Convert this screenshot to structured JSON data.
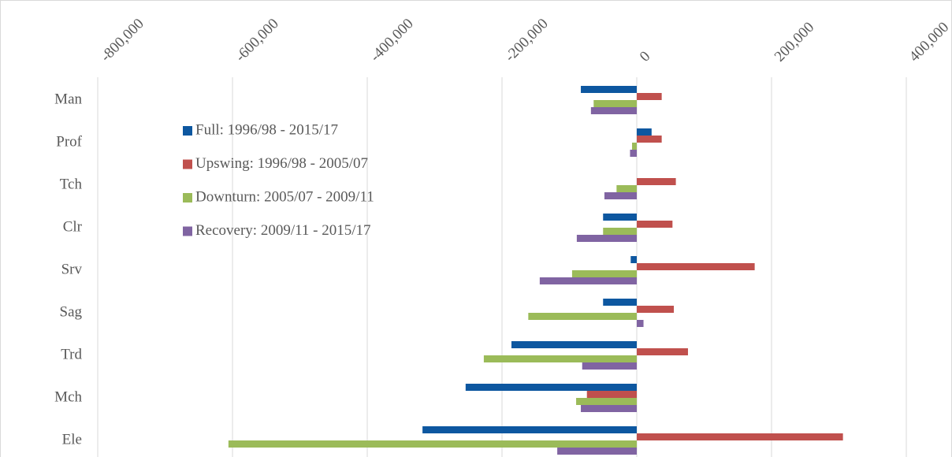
{
  "chart_data": {
    "type": "hbar",
    "categories": [
      "Man",
      "Prof",
      "Tch",
      "Clr",
      "Srv",
      "Sag",
      "Trd",
      "Mch",
      "Ele"
    ],
    "series": [
      {
        "name": "Full: 1996/98 - 2015/17",
        "color": "#0d57a0",
        "values": [
          -83000,
          22000,
          0,
          -50000,
          -9000,
          -50000,
          -186000,
          -254000,
          -318000
        ]
      },
      {
        "name": "Upswing: 1996/98 - 2005/07",
        "color": "#c0504d",
        "values": [
          37000,
          37000,
          58000,
          53000,
          175000,
          55000,
          76000,
          -74000,
          306000
        ]
      },
      {
        "name": "Downturn: 2005/07 - 2009/11",
        "color": "#9bbb59",
        "values": [
          -64000,
          -7000,
          -30000,
          -50000,
          -96000,
          -161000,
          -227000,
          -90000,
          -606000
        ]
      },
      {
        "name": "Recovery: 2009/11 - 2015/17",
        "color": "#8064a2",
        "values": [
          -68000,
          -10000,
          -48000,
          -89000,
          -144000,
          10000,
          -81000,
          -83000,
          -118000
        ]
      }
    ],
    "xlim": [
      -800000,
      400000
    ],
    "xticks": [
      {
        "value": -800000,
        "label": "-800,000"
      },
      {
        "value": -600000,
        "label": "-600,000"
      },
      {
        "value": -400000,
        "label": "-400,000"
      },
      {
        "value": -200000,
        "label": "-200,000"
      },
      0,
      {
        "value": 200000,
        "label": "200,000"
      },
      {
        "value": 400000,
        "label": "400,000"
      }
    ],
    "grid": true
  }
}
